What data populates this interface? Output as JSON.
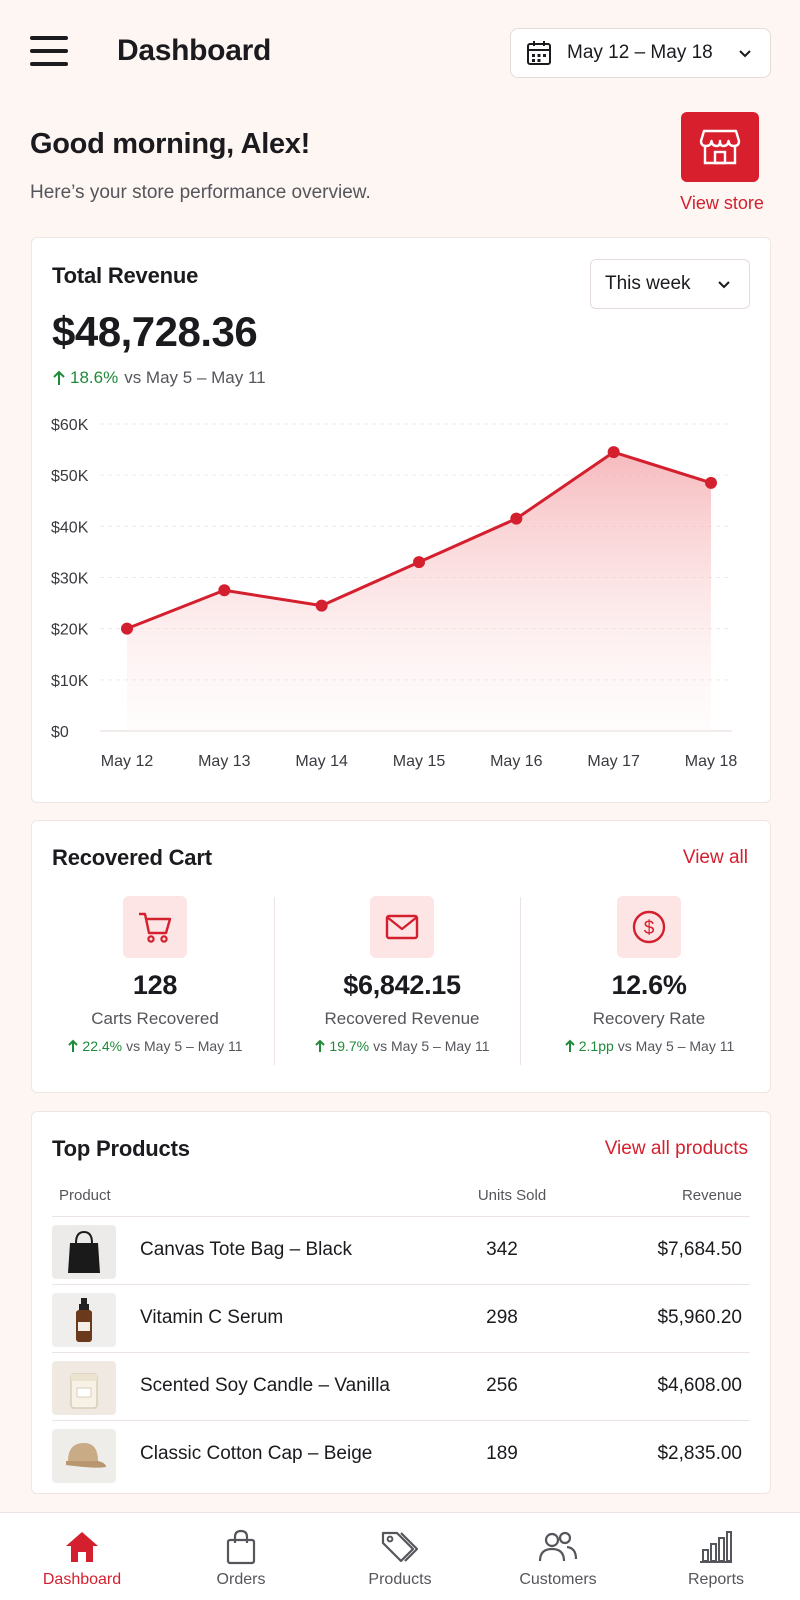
{
  "header": {
    "title": "Dashboard",
    "date_range": "May 12 – May 18"
  },
  "greeting": {
    "title": "Good morning, Alex!",
    "subtitle": "Here’s your store performance overview.",
    "store_button_label": "View store"
  },
  "revenue": {
    "title": "Total Revenue",
    "period": "This week",
    "amount": "$48,728.36",
    "change_pct": "18.6%",
    "change_compare": "vs May 5 – May 11"
  },
  "chart_data": {
    "type": "area",
    "categories": [
      "May 12",
      "May 13",
      "May 14",
      "May 15",
      "May 16",
      "May 17",
      "May 18"
    ],
    "values": [
      20000,
      27500,
      24500,
      33000,
      41500,
      54500,
      48500
    ],
    "ytick_labels": [
      "$60K",
      "$50K",
      "$40K",
      "$30K",
      "$20K",
      "$10K",
      "$0"
    ],
    "ylim": [
      0,
      60000
    ],
    "grid": true,
    "color": "#d4202e"
  },
  "recovered_cart": {
    "title": "Recovered Cart",
    "view_all": "View all",
    "metrics": [
      {
        "icon": "cart-icon",
        "value": "128",
        "label": "Carts Recovered",
        "change_pct": "22.4%",
        "change_compare": "vs May 5 – May 11"
      },
      {
        "icon": "mail-icon",
        "value": "$6,842.15",
        "label": "Recovered Revenue",
        "change_pct": "19.7%",
        "change_compare": "vs May 5 – May 11"
      },
      {
        "icon": "dollar-circle-icon",
        "value": "12.6%",
        "label": "Recovery Rate",
        "change_pct": "2.1pp",
        "change_compare": "vs May 5 – May 11"
      }
    ]
  },
  "top_products": {
    "title": "Top Products",
    "view_all": "View all products",
    "columns": {
      "product": "Product",
      "units": "Units Sold",
      "revenue": "Revenue"
    },
    "rows": [
      {
        "name": "Canvas Tote Bag – Black",
        "units": "342",
        "revenue": "$7,684.50",
        "icon": "tote-bag-icon"
      },
      {
        "name": "Vitamin C Serum",
        "units": "298",
        "revenue": "$5,960.20",
        "icon": "serum-bottle-icon"
      },
      {
        "name": "Scented Soy Candle – Vanilla",
        "units": "256",
        "revenue": "$4,608.00",
        "icon": "candle-icon"
      },
      {
        "name": "Classic Cotton Cap – Beige",
        "units": "189",
        "revenue": "$2,835.00",
        "icon": "cap-icon"
      }
    ]
  },
  "nav": {
    "items": [
      {
        "label": "Dashboard",
        "icon": "home-icon",
        "active": true
      },
      {
        "label": "Orders",
        "icon": "shopping-bag-icon"
      },
      {
        "label": "Products",
        "icon": "tag-icon"
      },
      {
        "label": "Customers",
        "icon": "users-icon"
      },
      {
        "label": "Reports",
        "icon": "bar-chart-icon"
      }
    ]
  },
  "colors": {
    "accent": "#d4202e",
    "positive": "#1f8a3a",
    "background": "#fdf6f3"
  }
}
